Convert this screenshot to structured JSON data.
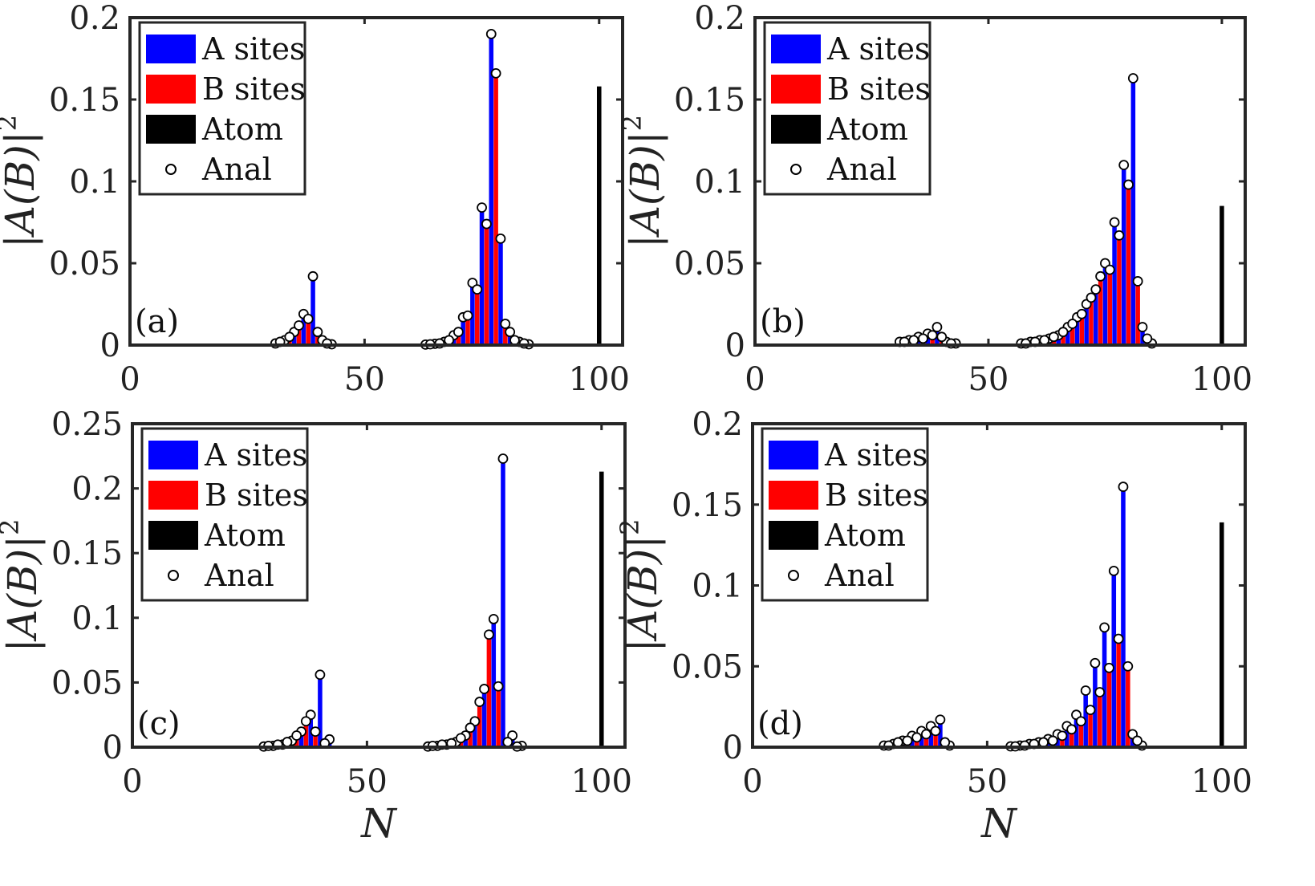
{
  "chart_data": [
    {
      "type": "bar",
      "panel_label": "(a)",
      "xlabel": "",
      "ylabel": "|A(B)|",
      "ylabel_superscript": "2",
      "xlim": [
        0,
        105
      ],
      "ylim": [
        0,
        0.2
      ],
      "xticks": [
        "0",
        "50",
        "100"
      ],
      "yticks": [
        "0",
        "0.05",
        "0.1",
        "0.15",
        "0.2"
      ],
      "legend": {
        "placement": "top-left",
        "entries": [
          "A sites",
          "B sites",
          "Atom",
          "Anal"
        ]
      },
      "atom": {
        "x": 100,
        "value": 0.158
      },
      "A": {
        "x": [
          31,
          33,
          35,
          37,
          39,
          41,
          43,
          63,
          65,
          67,
          69,
          71,
          73,
          75,
          77,
          79,
          81,
          83,
          85
        ],
        "values": [
          0.001,
          0.003,
          0.008,
          0.019,
          0.042,
          0.003,
          0.0005,
          0.0003,
          0.0008,
          0.002,
          0.006,
          0.017,
          0.038,
          0.084,
          0.19,
          0.065,
          0.008,
          0.002,
          0.0005
        ]
      },
      "B": {
        "x": [
          32,
          34,
          36,
          38,
          40,
          42,
          64,
          66,
          68,
          70,
          72,
          74,
          76,
          78,
          80,
          82,
          84
        ],
        "values": [
          0.002,
          0.005,
          0.012,
          0.016,
          0.008,
          0.001,
          0.0005,
          0.001,
          0.003,
          0.008,
          0.018,
          0.034,
          0.074,
          0.166,
          0.013,
          0.003,
          0.001
        ]
      }
    },
    {
      "type": "bar",
      "panel_label": "(b)",
      "xlabel": "",
      "ylabel": "|A(B)|",
      "ylabel_superscript": "2",
      "xlim": [
        0,
        105
      ],
      "ylim": [
        0,
        0.2
      ],
      "xticks": [
        "0",
        "50",
        "100"
      ],
      "yticks": [
        "0",
        "0.05",
        "0.1",
        "0.15",
        "0.2"
      ],
      "legend": {
        "placement": "top-left",
        "entries": [
          "A sites",
          "B sites",
          "Atom",
          "Anal"
        ]
      },
      "atom": {
        "x": 100,
        "value": 0.085
      },
      "A": {
        "x": [
          31,
          33,
          35,
          37,
          39,
          41,
          43,
          57,
          59,
          61,
          63,
          65,
          67,
          69,
          71,
          73,
          75,
          77,
          79,
          81,
          83,
          85
        ],
        "values": [
          0.002,
          0.003,
          0.005,
          0.007,
          0.011,
          0.002,
          0.001,
          0.001,
          0.002,
          0.003,
          0.004,
          0.006,
          0.011,
          0.017,
          0.025,
          0.034,
          0.05,
          0.075,
          0.11,
          0.163,
          0.011,
          0.001
        ]
      },
      "B": {
        "x": [
          32,
          34,
          36,
          38,
          40,
          42,
          58,
          60,
          62,
          64,
          66,
          68,
          70,
          72,
          74,
          76,
          78,
          80,
          82,
          84
        ],
        "values": [
          0.002,
          0.003,
          0.004,
          0.006,
          0.005,
          0.001,
          0.001,
          0.002,
          0.003,
          0.005,
          0.008,
          0.013,
          0.019,
          0.029,
          0.042,
          0.046,
          0.067,
          0.098,
          0.039,
          0.004
        ]
      }
    },
    {
      "type": "bar",
      "panel_label": "(c)",
      "xlabel": "N",
      "ylabel": "|A(B)|",
      "ylabel_superscript": "2",
      "xlim": [
        0,
        105
      ],
      "ylim": [
        0,
        0.25
      ],
      "xticks": [
        "0",
        "50",
        "100"
      ],
      "yticks": [
        "0",
        "0.05",
        "0.1",
        "0.15",
        "0.2",
        "0.25"
      ],
      "legend": {
        "placement": "top-left",
        "entries": [
          "A sites",
          "B sites",
          "Atom",
          "Anal"
        ]
      },
      "atom": {
        "x": 100,
        "value": 0.213
      },
      "A": {
        "x": [
          28,
          30,
          32,
          34,
          36,
          38,
          40,
          42,
          63,
          65,
          67,
          69,
          71,
          73,
          75,
          77,
          79,
          81,
          83
        ],
        "values": [
          0.0005,
          0.001,
          0.002,
          0.005,
          0.012,
          0.025,
          0.056,
          0.006,
          0.0005,
          0.001,
          0.002,
          0.004,
          0.009,
          0.02,
          0.045,
          0.099,
          0.223,
          0.009,
          0.001
        ]
      },
      "B": {
        "x": [
          29,
          31,
          33,
          35,
          37,
          39,
          41,
          64,
          66,
          68,
          70,
          72,
          74,
          76,
          78,
          80,
          82
        ],
        "values": [
          0.001,
          0.002,
          0.004,
          0.009,
          0.02,
          0.012,
          0.003,
          0.001,
          0.002,
          0.003,
          0.007,
          0.015,
          0.035,
          0.087,
          0.047,
          0.004,
          0.0005
        ]
      }
    },
    {
      "type": "bar",
      "panel_label": "(d)",
      "xlabel": "N",
      "ylabel": "|A(B)|",
      "ylabel_superscript": "2",
      "xlim": [
        0,
        105
      ],
      "ylim": [
        0,
        0.2
      ],
      "xticks": [
        "0",
        "50",
        "100"
      ],
      "yticks": [
        "0",
        "0.05",
        "0.1",
        "0.15",
        "0.2"
      ],
      "legend": {
        "placement": "top-left",
        "entries": [
          "A sites",
          "B sites",
          "Atom",
          "Anal"
        ]
      },
      "atom": {
        "x": 100,
        "value": 0.139
      },
      "A": {
        "x": [
          28,
          30,
          32,
          34,
          36,
          38,
          40,
          42,
          55,
          57,
          59,
          61,
          63,
          65,
          67,
          69,
          71,
          73,
          75,
          77,
          79,
          81,
          83
        ],
        "values": [
          0.001,
          0.002,
          0.004,
          0.007,
          0.01,
          0.013,
          0.017,
          0.001,
          0.0005,
          0.001,
          0.002,
          0.003,
          0.005,
          0.008,
          0.013,
          0.02,
          0.035,
          0.052,
          0.074,
          0.109,
          0.161,
          0.008,
          0.001
        ]
      },
      "B": {
        "x": [
          29,
          31,
          33,
          35,
          37,
          39,
          41,
          56,
          58,
          60,
          62,
          64,
          66,
          68,
          70,
          72,
          74,
          76,
          78,
          80,
          82
        ],
        "values": [
          0.001,
          0.003,
          0.004,
          0.006,
          0.008,
          0.01,
          0.003,
          0.0005,
          0.001,
          0.002,
          0.003,
          0.004,
          0.007,
          0.011,
          0.016,
          0.023,
          0.034,
          0.049,
          0.067,
          0.05,
          0.004
        ]
      }
    }
  ],
  "colors": {
    "A": "#0000ff",
    "B": "#ff0000",
    "atom": "#000000",
    "axis": "#262626"
  }
}
